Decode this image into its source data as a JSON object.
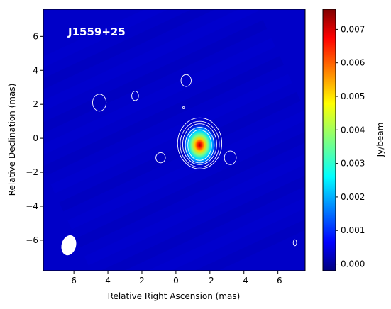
{
  "chart_data": {
    "type": "heatmap",
    "title": "",
    "source_label": "J1559+25",
    "xlabel": "Relative Right Ascension (mas)",
    "ylabel": "Relative Declination (mas)",
    "xlim": [
      7.8,
      -7.6
    ],
    "ylim": [
      -7.8,
      7.6
    ],
    "x_ticks": [
      6,
      4,
      2,
      0,
      -2,
      -4,
      -6
    ],
    "x_tick_labels": [
      "6",
      "4",
      "2",
      "0",
      "-2",
      "-4",
      "-6"
    ],
    "y_ticks": [
      6,
      4,
      2,
      0,
      -2,
      -4,
      -6
    ],
    "y_tick_labels": [
      "6",
      "4",
      "2",
      "0",
      "−2",
      "−4",
      "−6"
    ],
    "colormap": "jet",
    "colorbar_label": "Jy/beam",
    "colorbar_range": [
      -0.0002,
      0.0076
    ],
    "colorbar_ticks": [
      0.007,
      0.006,
      0.005,
      0.004,
      0.003,
      0.002,
      0.001,
      0.0
    ],
    "colorbar_tick_labels": [
      "0.007",
      "0.006",
      "0.005",
      "0.004",
      "0.003",
      "0.002",
      "0.001",
      "0.000"
    ],
    "peak": {
      "x": -1.4,
      "y": -0.4,
      "flux": 0.0076
    },
    "background_level": 0.0002,
    "beam": {
      "x": 6.3,
      "y": -6.3,
      "major_mas": 1.2,
      "minor_mas": 0.85,
      "angle_deg": 15
    },
    "contour_color": "#ffffff",
    "core_contours": [
      {
        "x": -1.4,
        "y": -0.3,
        "rx": 1.3,
        "ry": 1.5
      },
      {
        "x": -1.4,
        "y": -0.35,
        "rx": 1.15,
        "ry": 1.35
      },
      {
        "x": -1.4,
        "y": -0.35,
        "rx": 1.0,
        "ry": 1.2
      },
      {
        "x": -1.4,
        "y": -0.4,
        "rx": 0.85,
        "ry": 1.05
      },
      {
        "x": -1.4,
        "y": -0.4,
        "rx": 0.7,
        "ry": 0.9
      }
    ],
    "small_contours": [
      {
        "x": 4.5,
        "y": 2.1,
        "rx": 0.4,
        "ry": 0.5
      },
      {
        "x": 2.4,
        "y": 2.5,
        "rx": 0.2,
        "ry": 0.28
      },
      {
        "x": -0.6,
        "y": 3.4,
        "rx": 0.3,
        "ry": 0.35
      },
      {
        "x": -0.45,
        "y": 1.8,
        "rx": 0.06,
        "ry": 0.06
      },
      {
        "x": 0.9,
        "y": -1.15,
        "rx": 0.28,
        "ry": 0.3
      },
      {
        "x": -3.2,
        "y": -1.15,
        "rx": 0.35,
        "ry": 0.4
      },
      {
        "x": -7.0,
        "y": -6.15,
        "rx": 0.1,
        "ry": 0.18
      }
    ]
  }
}
